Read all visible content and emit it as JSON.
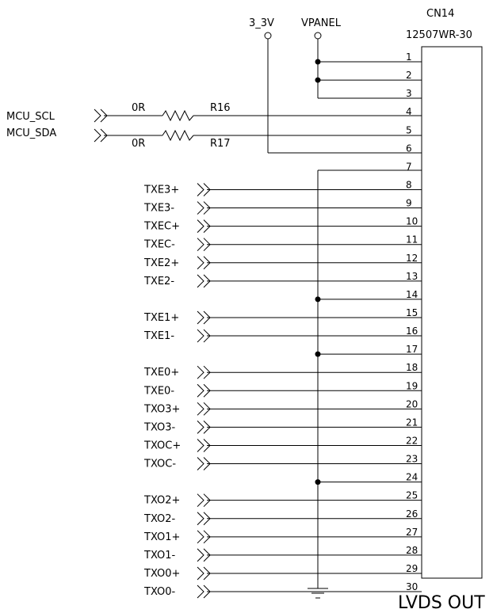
{
  "connector": {
    "ref": "CN14",
    "part": "12507WR-30",
    "pin_count": 30
  },
  "caption": "LVDS OUT",
  "power_labels": {
    "supply": "3_3V",
    "panel": "VPANEL"
  },
  "mcu": {
    "scl": "MCU_SCL",
    "sda": "MCU_SDA",
    "r16_value": "0R",
    "r16_ref": "R16",
    "r17_value": "0R",
    "r17_ref": "R17"
  },
  "signals": [
    {
      "name": "TXE3+",
      "pin": 8
    },
    {
      "name": "TXE3-",
      "pin": 9
    },
    {
      "name": "TXEC+",
      "pin": 10
    },
    {
      "name": "TXEC-",
      "pin": 11
    },
    {
      "name": "TXE2+",
      "pin": 12
    },
    {
      "name": "TXE2-",
      "pin": 13
    },
    {
      "name": "TXE1+",
      "pin": 15
    },
    {
      "name": "TXE1-",
      "pin": 16
    },
    {
      "name": "TXE0+",
      "pin": 18
    },
    {
      "name": "TXE0-",
      "pin": 19
    },
    {
      "name": "TXO3+",
      "pin": 20
    },
    {
      "name": "TXO3-",
      "pin": 21
    },
    {
      "name": "TXOC+",
      "pin": 22
    },
    {
      "name": "TXOC-",
      "pin": 23
    },
    {
      "name": "TXO2+",
      "pin": 25
    },
    {
      "name": "TXO2-",
      "pin": 26
    },
    {
      "name": "TXO1+",
      "pin": 27
    },
    {
      "name": "TXO1-",
      "pin": 28
    },
    {
      "name": "TXO0+",
      "pin": 29
    },
    {
      "name": "TXO0-",
      "pin": 30
    }
  ],
  "ground_pins": [
    7,
    14,
    17,
    24
  ],
  "pins": [
    "1",
    "2",
    "3",
    "4",
    "5",
    "6",
    "7",
    "8",
    "9",
    "10",
    "11",
    "12",
    "13",
    "14",
    "15",
    "16",
    "17",
    "18",
    "19",
    "20",
    "21",
    "22",
    "23",
    "24",
    "25",
    "26",
    "27",
    "28",
    "29",
    "30"
  ]
}
